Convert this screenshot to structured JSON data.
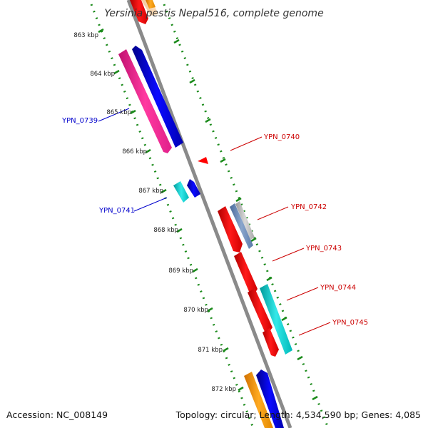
{
  "title": "Yersinia pestis Nepal516, complete genome",
  "footer": {
    "accession": "Accession: NC_008149",
    "topology": "Topology: circular; Length: 4,534,590 bp; Genes: 4,085"
  },
  "ticks": [
    "863 kbp",
    "864 kbp",
    "865 kbp",
    "866 kbp",
    "867 kbp",
    "868 kbp",
    "869 kbp",
    "870 kbp",
    "871 kbp",
    "872 kbp"
  ],
  "gene_labels": {
    "ypn_0739": "YPN_0739",
    "ypn_0740": "YPN_0740",
    "ypn_0741": "YPN_0741",
    "ypn_0742": "YPN_0742",
    "ypn_0743": "YPN_0743",
    "ypn_0744": "YPN_0744",
    "ypn_0745": "YPN_0745"
  },
  "colors": {
    "backbone": "#8a8a8a",
    "tick_marks": "#1a8a1a",
    "forward_label": "#cc0000",
    "reverse_label": "#0000cc",
    "red_gene": "#ff0000",
    "blue_gene": "#0000ee",
    "pink_gene": "#ff1493",
    "cyan_gene": "#00cccc",
    "orange_gene": "#ff9900"
  }
}
